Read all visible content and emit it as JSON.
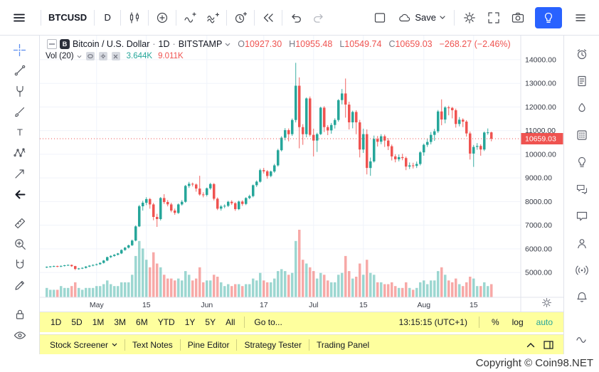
{
  "topbar": {
    "symbol": "BTCUSD",
    "interval": "D",
    "save_label": "Save"
  },
  "legend": {
    "logo": "B",
    "title": "Bitcoin / U.S. Dollar",
    "dot": "·",
    "interval": "1D",
    "exchange": "BITSTAMP",
    "ohlc": {
      "o_label": "O",
      "o": "10927.30",
      "h_label": "H",
      "h": "10955.48",
      "l_label": "L",
      "l": "10549.74",
      "c_label": "C",
      "c": "10659.03",
      "change": "−268.27 (−2.46%)"
    },
    "volume": {
      "label": "Vol (20)",
      "value": "3.644K",
      "ma": "9.011K"
    }
  },
  "chart_data": {
    "type": "candlestick",
    "title": "Bitcoin / U.S. Dollar",
    "symbol": "BTCUSD",
    "exchange": "BITSTAMP",
    "interval": "1D",
    "last_price": 10659.03,
    "ylim": [
      3950,
      15020
    ],
    "grid": true,
    "legend_position": "top-left",
    "y_ticks": [
      {
        "value": 14000,
        "label": "14000.00"
      },
      {
        "value": 13000,
        "label": "13000.00"
      },
      {
        "value": 12000,
        "label": "12000.00"
      },
      {
        "value": 11000,
        "label": "11000.00"
      },
      {
        "value": 10000,
        "label": "10000.00"
      },
      {
        "value": 9000,
        "label": "9000.00"
      },
      {
        "value": 8000,
        "label": "8000.00"
      },
      {
        "value": 7000,
        "label": "7000.00"
      },
      {
        "value": 6000,
        "label": "6000.00"
      },
      {
        "value": 5000,
        "label": "5000.00"
      }
    ],
    "x_ticks": [
      {
        "index": 14,
        "label": "May"
      },
      {
        "index": 28,
        "label": "15"
      },
      {
        "index": 45,
        "label": "Jun"
      },
      {
        "index": 61,
        "label": "17"
      },
      {
        "index": 75,
        "label": "Jul"
      },
      {
        "index": 89,
        "label": "15"
      },
      {
        "index": 106,
        "label": "Aug"
      },
      {
        "index": 120,
        "label": "15"
      }
    ],
    "candles": [
      [
        5220,
        5255,
        5190,
        5240,
        5
      ],
      [
        5240,
        5272,
        5208,
        5260,
        4
      ],
      [
        5260,
        5292,
        5232,
        5270,
        4
      ],
      [
        5270,
        5288,
        5222,
        5260,
        4
      ],
      [
        5260,
        5296,
        5226,
        5280,
        6
      ],
      [
        5280,
        5322,
        5254,
        5305,
        5
      ],
      [
        5305,
        5340,
        5280,
        5320,
        5
      ],
      [
        5320,
        5336,
        5238,
        5270,
        6
      ],
      [
        5270,
        5284,
        5102,
        5150,
        8
      ],
      [
        5150,
        5192,
        5118,
        5170,
        5
      ],
      [
        5170,
        5216,
        5144,
        5195,
        4
      ],
      [
        5195,
        5272,
        5168,
        5250,
        5
      ],
      [
        5250,
        5312,
        5224,
        5290,
        5
      ],
      [
        5290,
        5342,
        5262,
        5320,
        5
      ],
      [
        5320,
        5376,
        5294,
        5350,
        6
      ],
      [
        5350,
        5428,
        5322,
        5405,
        6
      ],
      [
        5405,
        5528,
        5378,
        5505,
        7
      ],
      [
        5505,
        5672,
        5478,
        5650,
        9
      ],
      [
        5650,
        5732,
        5612,
        5700,
        7
      ],
      [
        5700,
        5778,
        5668,
        5750,
        6
      ],
      [
        5750,
        5828,
        5718,
        5805,
        6
      ],
      [
        5805,
        5978,
        5778,
        5950,
        8
      ],
      [
        5950,
        6078,
        5918,
        6050,
        8
      ],
      [
        6050,
        6178,
        6016,
        6150,
        8
      ],
      [
        6150,
        6392,
        6118,
        6350,
        12
      ],
      [
        6350,
        6992,
        6318,
        6950,
        22
      ],
      [
        6950,
        7862,
        6918,
        7800,
        30
      ],
      [
        7800,
        8032,
        7618,
        7950,
        26
      ],
      [
        7950,
        8182,
        7848,
        8105,
        20
      ],
      [
        8105,
        8152,
        7698,
        7880,
        16
      ],
      [
        7880,
        7942,
        7208,
        7350,
        24
      ],
      [
        7350,
        7482,
        6928,
        7260,
        18
      ],
      [
        7260,
        8192,
        7198,
        8150,
        16
      ],
      [
        8150,
        8312,
        7898,
        7980,
        12
      ],
      [
        7980,
        8062,
        7798,
        7880,
        10
      ],
      [
        7880,
        7952,
        7548,
        7620,
        10
      ],
      [
        7620,
        7702,
        7438,
        7520,
        9
      ],
      [
        7520,
        7922,
        7478,
        7880,
        10
      ],
      [
        7880,
        8062,
        7828,
        7990,
        9
      ],
      [
        7990,
        8702,
        7948,
        8660,
        14
      ],
      [
        8660,
        8832,
        8578,
        8750,
        12
      ],
      [
        8750,
        8802,
        8638,
        8720,
        9
      ],
      [
        8720,
        8762,
        8418,
        8550,
        10
      ],
      [
        8550,
        9092,
        8248,
        8300,
        16
      ],
      [
        8300,
        8392,
        8178,
        8280,
        8
      ],
      [
        8280,
        8592,
        8218,
        8560,
        9
      ],
      [
        8560,
        8792,
        8498,
        8740,
        9
      ],
      [
        8740,
        8782,
        8048,
        8120,
        12
      ],
      [
        8120,
        8172,
        7638,
        7700,
        11
      ],
      [
        7700,
        7852,
        7618,
        7790,
        8
      ],
      [
        7790,
        7882,
        7718,
        7820,
        6
      ],
      [
        7820,
        8032,
        7768,
        7990,
        7
      ],
      [
        7990,
        8052,
        7858,
        7930,
        6
      ],
      [
        7930,
        7972,
        7608,
        7680,
        7
      ],
      [
        7680,
        8042,
        7638,
        8000,
        7
      ],
      [
        8000,
        8052,
        7818,
        7900,
        6
      ],
      [
        7900,
        8182,
        7848,
        8150,
        7
      ],
      [
        8150,
        8292,
        8098,
        8230,
        7
      ],
      [
        8230,
        8722,
        8178,
        8690,
        10
      ],
      [
        8690,
        8892,
        8618,
        8840,
        9
      ],
      [
        8840,
        9392,
        8798,
        9330,
        13
      ],
      [
        9330,
        9422,
        9188,
        9280,
        9
      ],
      [
        9280,
        9332,
        8968,
        9080,
        8
      ],
      [
        9080,
        9312,
        9028,
        9270,
        8
      ],
      [
        9270,
        9592,
        9218,
        9530,
        10
      ],
      [
        9530,
        10232,
        9478,
        10170,
        14
      ],
      [
        10170,
        10762,
        10118,
        10700,
        15
      ],
      [
        10700,
        11102,
        10588,
        11020,
        14
      ],
      [
        11020,
        11092,
        10548,
        10850,
        12
      ],
      [
        10850,
        11512,
        10778,
        11450,
        13
      ],
      [
        11450,
        13868,
        11348,
        12900,
        30
      ],
      [
        12900,
        13252,
        10252,
        11150,
        36
      ],
      [
        11150,
        11272,
        10398,
        10850,
        20
      ],
      [
        10850,
        12402,
        10718,
        12360,
        18
      ],
      [
        12360,
        12442,
        10748,
        10820,
        16
      ],
      [
        10820,
        11082,
        9908,
        10580,
        14
      ],
      [
        10580,
        10912,
        10098,
        10850,
        10
      ],
      [
        10850,
        12012,
        10818,
        11970,
        13
      ],
      [
        11970,
        12032,
        10938,
        11150,
        12
      ],
      [
        11150,
        11232,
        10808,
        11010,
        9
      ],
      [
        11010,
        11322,
        10868,
        11240,
        8
      ],
      [
        11240,
        11522,
        11088,
        11450,
        8
      ],
      [
        11450,
        12332,
        11378,
        12290,
        12
      ],
      [
        12290,
        12762,
        12108,
        12570,
        13
      ],
      [
        12570,
        13202,
        11548,
        12100,
        22
      ],
      [
        12100,
        12222,
        11048,
        11350,
        14
      ],
      [
        11350,
        11842,
        11098,
        11790,
        10
      ],
      [
        11790,
        11862,
        10848,
        11350,
        11
      ],
      [
        11350,
        11452,
        9868,
        10200,
        18
      ],
      [
        10200,
        11082,
        10058,
        10850,
        12
      ],
      [
        10850,
        11052,
        9148,
        9420,
        20
      ],
      [
        9420,
        9862,
        9088,
        9700,
        13
      ],
      [
        9700,
        10792,
        9648,
        10650,
        12
      ],
      [
        10650,
        10772,
        10328,
        10530,
        8
      ],
      [
        10530,
        10852,
        10428,
        10760,
        8
      ],
      [
        10760,
        10832,
        10308,
        10580,
        7
      ],
      [
        10580,
        10682,
        10178,
        10340,
        7
      ],
      [
        10340,
        10412,
        9738,
        9910,
        8
      ],
      [
        9910,
        10002,
        9658,
        9790,
        6
      ],
      [
        9790,
        9992,
        9698,
        9880,
        5
      ],
      [
        9880,
        10022,
        9748,
        9840,
        5
      ],
      [
        9840,
        9902,
        9328,
        9480,
        8
      ],
      [
        9480,
        9652,
        9378,
        9530,
        5
      ],
      [
        9530,
        9642,
        9398,
        9510,
        4
      ],
      [
        9510,
        9692,
        9418,
        9590,
        5
      ],
      [
        9590,
        10132,
        9528,
        10080,
        8
      ],
      [
        10080,
        10452,
        9938,
        10400,
        9
      ],
      [
        10400,
        10672,
        10308,
        10520,
        7
      ],
      [
        10520,
        10942,
        10418,
        10820,
        9
      ],
      [
        10820,
        11072,
        10568,
        10970,
        9
      ],
      [
        10970,
        11872,
        10898,
        11810,
        14
      ],
      [
        11810,
        12322,
        11228,
        11470,
        16
      ],
      [
        11470,
        12032,
        11308,
        11980,
        12
      ],
      [
        11980,
        12052,
        11648,
        11960,
        9
      ],
      [
        11960,
        12002,
        11518,
        11860,
        8
      ],
      [
        11860,
        11932,
        11128,
        11280,
        10
      ],
      [
        11280,
        11572,
        11178,
        11460,
        7
      ],
      [
        11460,
        11522,
        11148,
        11380,
        6
      ],
      [
        11380,
        11442,
        10748,
        10880,
        8
      ],
      [
        10880,
        10962,
        9778,
        10030,
        11
      ],
      [
        10030,
        10392,
        9468,
        10310,
        10
      ],
      [
        10310,
        10472,
        10188,
        10350,
        6
      ],
      [
        10350,
        10422,
        9938,
        10200,
        6
      ],
      [
        10200,
        10962,
        10138,
        10920,
        8
      ],
      [
        10920,
        11092,
        10828,
        10927,
        6
      ],
      [
        10927.3,
        10955.48,
        10549.74,
        10659.03,
        7
      ]
    ]
  },
  "bottom_bar": {
    "ranges": [
      "1D",
      "5D",
      "1M",
      "3M",
      "6M",
      "YTD",
      "1Y",
      "5Y",
      "All"
    ],
    "goto_label": "Go to...",
    "clock": "13:15:15 (UTC+1)",
    "percent_label": "%",
    "log_label": "log",
    "auto_label": "auto"
  },
  "panel_bar": {
    "items": [
      "Stock Screener",
      "Text Notes",
      "Pine Editor",
      "Strategy Tester",
      "Trading Panel"
    ]
  },
  "footer": {
    "copyright": "Copyright © Coin98.NET"
  },
  "colors": {
    "up": "#26a69a",
    "down": "#ef5350",
    "vol_up": "rgba(38,166,154,0.45)",
    "vol_down": "rgba(239,83,80,0.5)",
    "grid": "#f0f3fa",
    "axis_text": "#363a45",
    "border": "#e0e3eb",
    "accent": "#2962ff",
    "highlight": "#feff9e",
    "price_label_bg": "#ef5350"
  }
}
